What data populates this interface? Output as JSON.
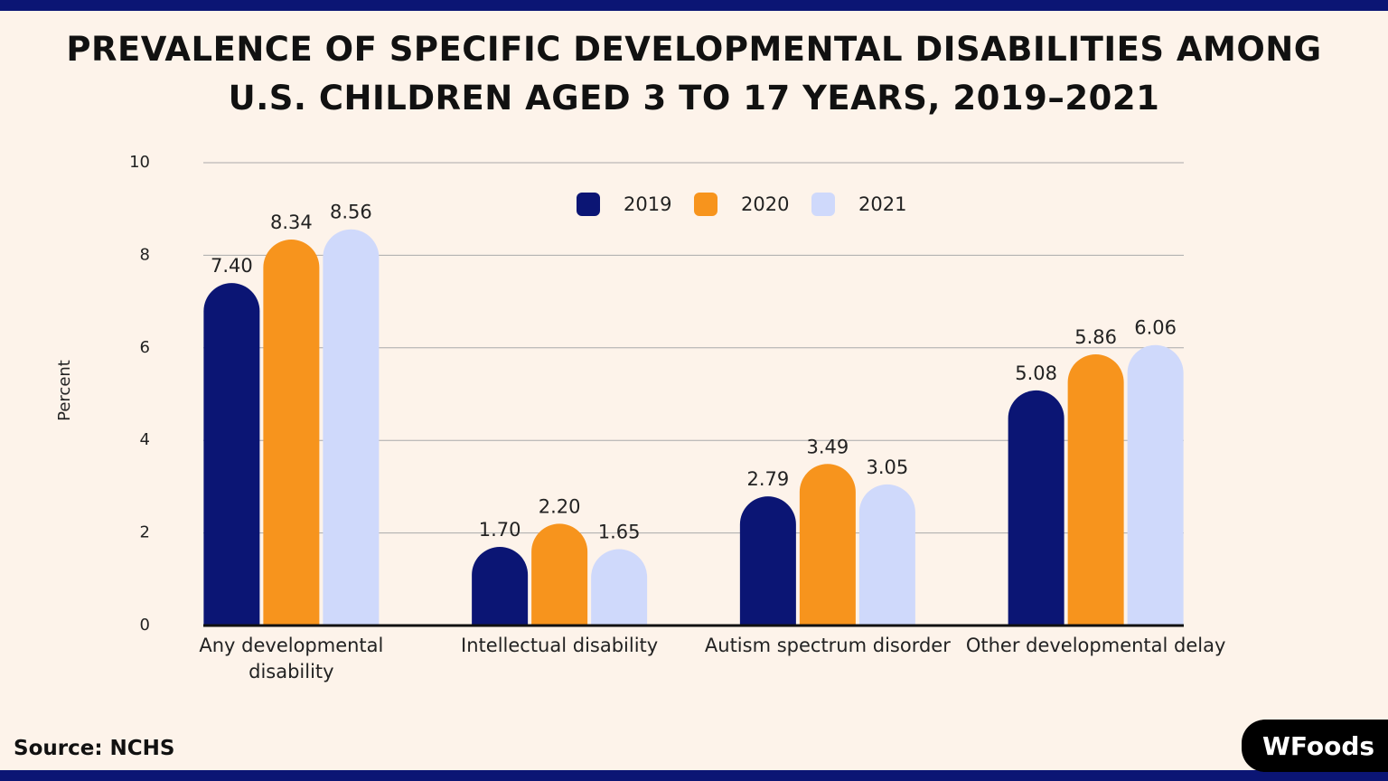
{
  "chart_data": {
    "type": "bar",
    "title": "PREVALENCE OF SPECIFIC DEVELOPMENTAL DISABILITIES AMONG U.S. CHILDREN AGED 3 TO 17 YEARS, 2019–2021",
    "y_label": "Percent",
    "categories": [
      "Any developmental disability",
      "Intellectual disability",
      "Autism spectrum disorder",
      "Other developmental delay"
    ],
    "series": [
      {
        "name": "2019",
        "color": "#0b1574",
        "values": [
          7.4,
          1.7,
          2.79,
          5.08
        ],
        "value_labels": [
          "7.40",
          "1.70",
          "2.79",
          "5.08"
        ]
      },
      {
        "name": "2020",
        "color": "#f7941d",
        "values": [
          8.34,
          2.2,
          3.49,
          5.86
        ],
        "value_labels": [
          "8.34",
          "2.20",
          "3.49",
          "5.86"
        ]
      },
      {
        "name": "2021",
        "color": "#cfd9fb",
        "values": [
          8.56,
          1.65,
          3.05,
          6.06
        ],
        "value_labels": [
          "8.56",
          "1.65",
          "3.05",
          "6.06"
        ]
      }
    ],
    "ylim": [
      0,
      10
    ],
    "yticks": [
      0,
      2,
      4,
      6,
      8,
      10
    ],
    "grid": true,
    "legend": "top"
  },
  "source": "Source: NCHS",
  "logo": "WFoods"
}
